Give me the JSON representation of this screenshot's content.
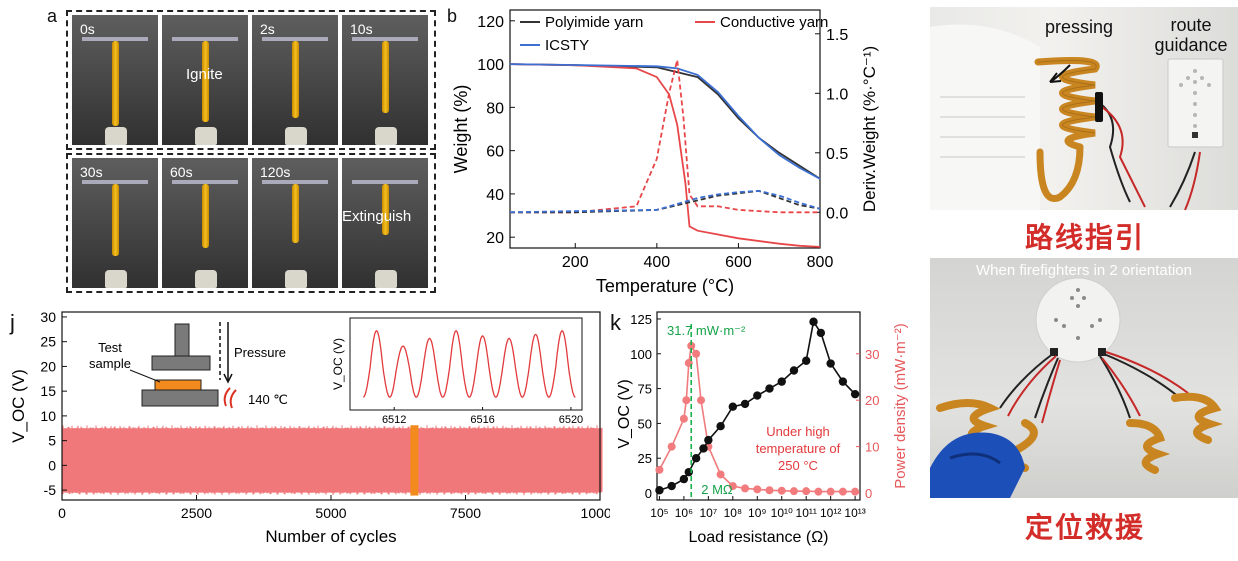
{
  "panel_a": {
    "letter": "a",
    "frames_top": [
      {
        "time": "0s",
        "label": ""
      },
      {
        "time": "2s",
        "label": "Ignite"
      },
      {
        "time": "10s",
        "label": ""
      }
    ],
    "frames_top_first": "0s",
    "frames_bottom": [
      {
        "time": "30s",
        "label": ""
      },
      {
        "time": "60s",
        "label": ""
      },
      {
        "time": "120s",
        "label": "Extinguish"
      }
    ],
    "ignite_label": "Ignite",
    "extinguish_label": "Extinguish"
  },
  "chart_data": [
    {
      "panel": "b",
      "type": "line",
      "xlabel": "Temperature (°C)",
      "ylabel_left": "Weight (%)",
      "ylabel_right": "Deriv.Weight (%·°C⁻¹)",
      "xlim": [
        40,
        800
      ],
      "ylim_left": [
        15,
        125
      ],
      "ylim_right": [
        -0.3,
        1.7
      ],
      "x_ticks": [
        "200",
        "400",
        "600",
        "800"
      ],
      "y_ticks_left": [
        "20",
        "40",
        "60",
        "80",
        "100",
        "120"
      ],
      "y_ticks_right": [
        "0.0",
        "0.5",
        "1.0",
        "1.5"
      ],
      "legend": [
        "Polyimide yarn",
        "Conductive yarn",
        "ICSTY"
      ],
      "colors": {
        "Polyimide yarn": "#333333",
        "Conductive yarn": "#e8474a",
        "ICSTY": "#3b6fd1"
      },
      "series": [
        {
          "name": "Polyimide yarn",
          "axis": "left",
          "style": "solid",
          "x": [
            40,
            200,
            400,
            500,
            550,
            600,
            650,
            700,
            750,
            800
          ],
          "y": [
            100,
            99.5,
            98.5,
            94,
            86,
            75,
            66,
            59,
            53,
            47
          ]
        },
        {
          "name": "Conductive yarn",
          "axis": "left",
          "style": "solid",
          "x": [
            40,
            200,
            350,
            400,
            430,
            450,
            470,
            480,
            500,
            600,
            700,
            750,
            800
          ],
          "y": [
            100,
            99.5,
            98,
            94,
            86,
            72,
            45,
            25,
            23,
            19.5,
            17,
            16,
            15.5
          ]
        },
        {
          "name": "ICSTY",
          "axis": "left",
          "style": "solid",
          "x": [
            40,
            200,
            400,
            450,
            500,
            550,
            600,
            650,
            700,
            750,
            800
          ],
          "y": [
            100,
            99.6,
            99,
            98,
            95,
            87,
            76,
            66,
            58,
            52,
            47
          ]
        },
        {
          "name": "Conductive yarn",
          "axis": "right",
          "style": "dashed",
          "x": [
            40,
            200,
            350,
            400,
            430,
            450,
            465,
            480,
            500,
            550,
            600,
            700,
            800
          ],
          "y": [
            0,
            0.0,
            0.05,
            0.45,
            1.0,
            1.28,
            0.8,
            0.15,
            0.05,
            0.05,
            0.02,
            0.0,
            0.0
          ]
        },
        {
          "name": "Polyimide yarn",
          "axis": "right",
          "style": "dashed",
          "x": [
            40,
            200,
            400,
            450,
            500,
            550,
            600,
            650,
            700,
            750,
            800
          ],
          "y": [
            0.0,
            0.0,
            0.02,
            0.06,
            0.1,
            0.14,
            0.16,
            0.18,
            0.12,
            0.06,
            0.03
          ]
        },
        {
          "name": "ICSTY",
          "axis": "right",
          "style": "dashed",
          "x": [
            40,
            200,
            400,
            450,
            500,
            550,
            600,
            650,
            700,
            750,
            800
          ],
          "y": [
            0.0,
            0.01,
            0.02,
            0.07,
            0.12,
            0.15,
            0.17,
            0.18,
            0.14,
            0.08,
            0.03
          ]
        }
      ]
    },
    {
      "panel": "j",
      "type": "area",
      "xlabel": "Number of cycles",
      "ylabel": "V_OC (V)",
      "xlim": [
        0,
        10000
      ],
      "ylim": [
        -7,
        31
      ],
      "x_ticks": [
        "0",
        "2500",
        "5000",
        "7500",
        "10000"
      ],
      "y_ticks": [
        "-5",
        "0",
        "5",
        "10",
        "15",
        "20",
        "25",
        "30"
      ],
      "band": {
        "min": -5.5,
        "max": 7.5,
        "color": "#f0777a"
      },
      "highlight": {
        "x": 6550,
        "color": "#f28a1e"
      },
      "schematic": {
        "test_sample": "Test sample",
        "pressure": "Pressure",
        "temperature": "140 ℃"
      },
      "inset": {
        "ylabel": "V_OC (V)",
        "xlim": [
          6510,
          6520.5
        ],
        "ylim": [
          -8,
          10
        ],
        "x_ticks": [
          "6512",
          "6516",
          "6520"
        ],
        "y_peaks": [
          7.5,
          4.5,
          6,
          7.5,
          6.5,
          6,
          6.8,
          7.5
        ],
        "y_min": -5.5
      }
    },
    {
      "panel": "k",
      "type": "scatter",
      "xlabel": "Load resistance (Ω)",
      "ylabel_left": "V_OC (V)",
      "ylabel_right": "Power density (mW·m⁻²)",
      "x_scale": "log",
      "xlim_exp": [
        4.9,
        13.2
      ],
      "ylim_left": [
        -5,
        130
      ],
      "ylim_right": [
        -1.5,
        39
      ],
      "x_ticks": [
        "10⁵",
        "10⁶",
        "10⁷",
        "10⁸",
        "10⁹",
        "10¹⁰",
        "10¹¹",
        "10¹²",
        "10¹³"
      ],
      "y_ticks_left": [
        "0",
        "25",
        "50",
        "75",
        "100",
        "125"
      ],
      "y_ticks_right": [
        "0",
        "10",
        "20",
        "30"
      ],
      "voc_series": {
        "name": "V_OC",
        "color": "#111111",
        "x_exp": [
          5,
          5.5,
          6,
          6.2,
          6.5,
          6.8,
          7,
          7.5,
          8,
          8.5,
          9,
          9.5,
          10,
          10.5,
          11,
          11.3,
          11.6,
          12,
          12.5,
          13
        ],
        "y": [
          2,
          5,
          10,
          15,
          25,
          32,
          38,
          48,
          62,
          64,
          70,
          75,
          80,
          88,
          95,
          123,
          115,
          93,
          80,
          71
        ]
      },
      "power_series": {
        "name": "Power density",
        "color": "#f17b7d",
        "x_exp": [
          5,
          5.5,
          6,
          6.1,
          6.2,
          6.3,
          6.5,
          6.7,
          7,
          7.5,
          8,
          8.5,
          9,
          9.5,
          10,
          10.5,
          11,
          11.5,
          12,
          12.5,
          13
        ],
        "y": [
          5,
          10,
          16,
          20,
          28,
          31.7,
          30,
          20,
          10,
          4,
          1.5,
          1,
          0.8,
          0.6,
          0.5,
          0.4,
          0.4,
          0.3,
          0.3,
          0.3,
          0.3
        ]
      },
      "annotations": {
        "peak_power": "31.7 mW·m⁻²",
        "resistance": "2 MΩ",
        "condition": "Under high temperature of 250 °C"
      },
      "peak_x_exp": 6.3
    }
  ],
  "panel_right_top": {
    "pressing": "pressing",
    "route_guidance": "route guidance",
    "caption": "路线指引"
  },
  "panel_right_bottom": {
    "header": "When firefighters in 2 orientation",
    "caption": "定位救援"
  },
  "labels": {
    "b": "b",
    "j": "j",
    "k": "k"
  }
}
